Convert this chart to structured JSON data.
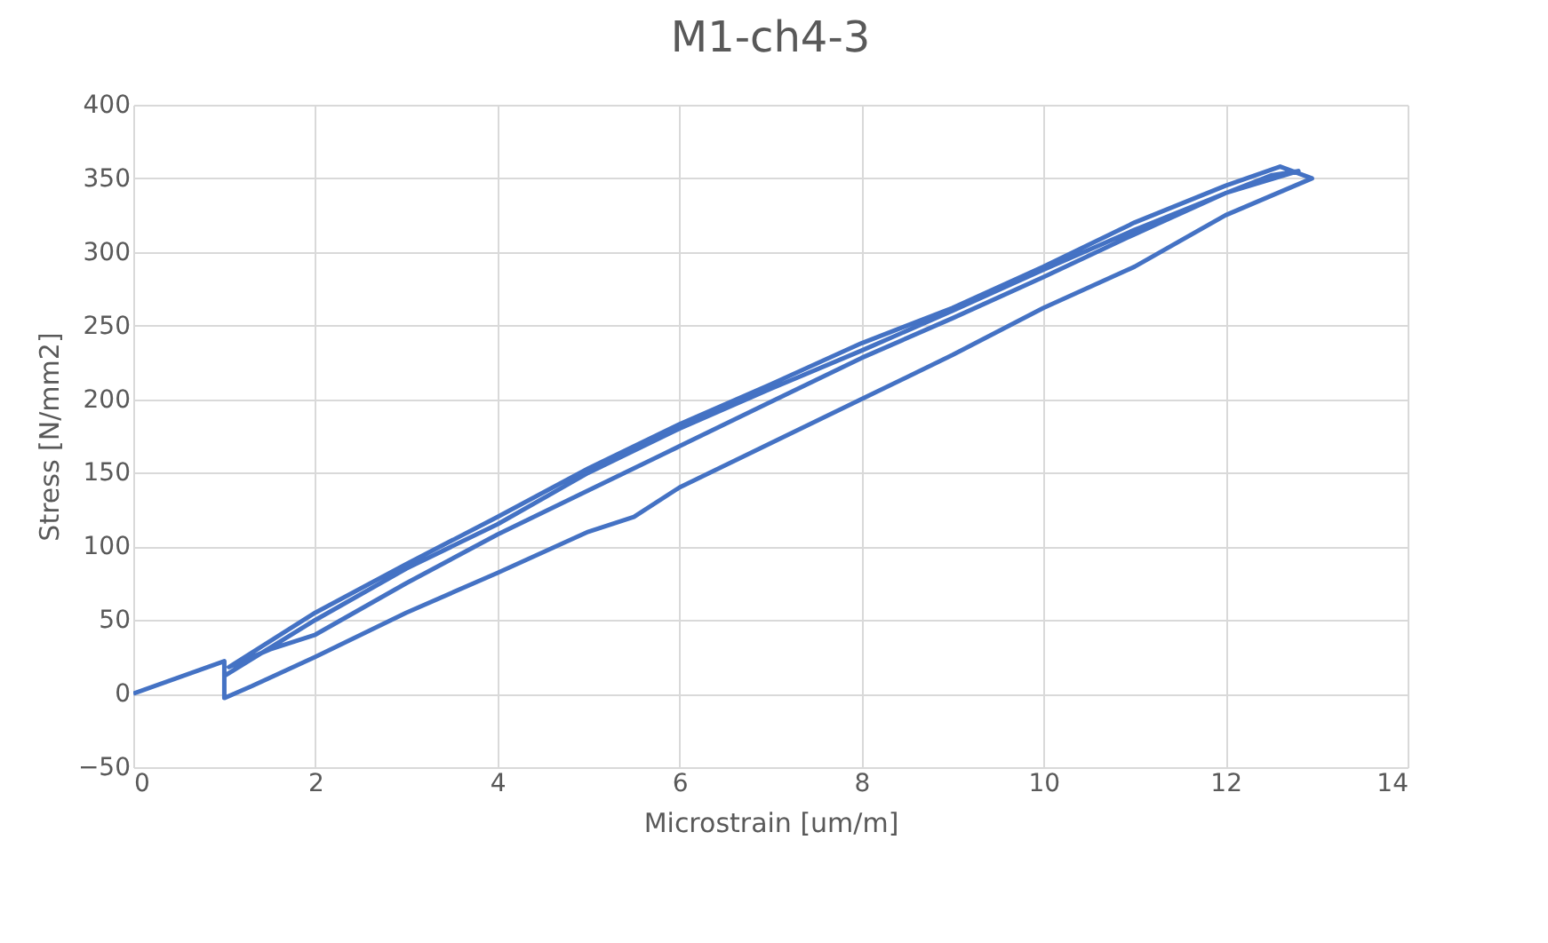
{
  "chart_data": {
    "type": "line",
    "title": "M1-ch4-3",
    "xlabel": "Microstrain [um/m]",
    "ylabel": "Stress [N/mm2]",
    "xlim": [
      0,
      14
    ],
    "xticks": [
      0,
      2,
      4,
      6,
      8,
      10,
      12,
      14
    ],
    "ylim": [
      -50,
      400
    ],
    "yticks": [
      -50,
      0,
      50,
      100,
      150,
      200,
      250,
      300,
      350,
      400
    ],
    "grid": true,
    "series": [
      {
        "color": "#4472c4",
        "x": [
          0,
          1,
          1,
          1.3,
          2,
          3,
          4,
          5,
          5.5,
          6,
          7,
          8,
          9,
          10,
          11,
          12,
          12.95,
          12.6,
          12,
          11,
          10,
          9,
          8,
          7,
          6,
          5,
          4,
          3,
          2,
          1.05,
          1.5,
          2,
          3,
          4,
          5,
          6,
          7,
          8,
          9,
          10,
          11,
          12,
          12.8,
          12.5,
          12,
          11,
          10,
          9,
          8,
          7,
          6,
          5,
          4,
          3,
          2,
          1
        ],
        "values": [
          0,
          22,
          -3,
          5,
          25,
          55,
          82,
          110,
          120,
          140,
          170,
          200,
          230,
          262,
          290,
          325,
          350,
          358,
          345,
          320,
          290,
          262,
          238,
          210,
          183,
          153,
          120,
          88,
          55,
          18,
          30,
          40,
          75,
          108,
          138,
          168,
          198,
          228,
          255,
          283,
          312,
          340,
          355,
          352,
          340,
          315,
          288,
          260,
          233,
          207,
          180,
          150,
          115,
          85,
          50,
          12
        ]
      }
    ]
  }
}
